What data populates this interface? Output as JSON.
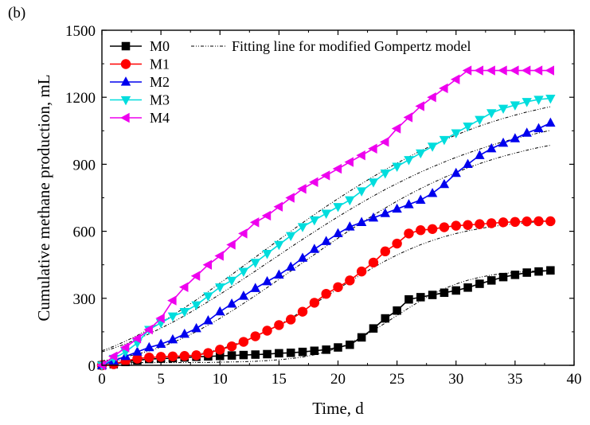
{
  "panel_label": "(b)",
  "chart_data": {
    "type": "line",
    "title": "",
    "xlabel": "Time, d",
    "ylabel": "Cumulative methane production, mL",
    "xlim": [
      0,
      40
    ],
    "ylim": [
      0,
      1500
    ],
    "xticks": [
      "0",
      "5",
      "10",
      "15",
      "20",
      "25",
      "30",
      "35",
      "40"
    ],
    "yticks": [
      "0",
      "300",
      "600",
      "900",
      "1200",
      "1500"
    ],
    "grid": false,
    "legend_placement": "top-left",
    "fit_legend_label": "Fitting line for modified Gompertz model",
    "x": [
      0,
      1,
      2,
      3,
      4,
      5,
      6,
      7,
      8,
      9,
      10,
      11,
      12,
      13,
      14,
      15,
      16,
      17,
      18,
      19,
      20,
      21,
      22,
      23,
      24,
      25,
      26,
      27,
      28,
      29,
      30,
      31,
      32,
      33,
      34,
      35,
      36,
      37,
      38
    ],
    "series": [
      {
        "name": "M0",
        "color": "#000000",
        "marker": "square",
        "values": [
          0,
          5,
          15,
          22,
          28,
          30,
          32,
          35,
          38,
          40,
          42,
          44,
          46,
          48,
          50,
          54,
          56,
          60,
          65,
          70,
          80,
          92,
          125,
          165,
          210,
          245,
          295,
          305,
          315,
          325,
          335,
          348,
          365,
          380,
          395,
          405,
          415,
          420,
          425
        ],
        "fit": [
          12,
          12,
          12,
          12,
          12,
          12,
          12,
          12,
          13,
          13,
          14,
          15,
          16,
          18,
          21,
          25,
          30,
          37,
          47,
          61,
          78,
          100,
          126,
          156,
          189,
          223,
          257,
          289,
          318,
          343,
          364,
          381,
          394,
          404,
          411,
          416,
          420,
          423,
          426
        ]
      },
      {
        "name": "M1",
        "color": "#ff0000",
        "marker": "circle",
        "values": [
          0,
          5,
          20,
          30,
          35,
          38,
          40,
          42,
          45,
          55,
          70,
          85,
          105,
          130,
          155,
          180,
          205,
          240,
          280,
          320,
          350,
          380,
          420,
          460,
          510,
          545,
          590,
          605,
          610,
          618,
          625,
          628,
          632,
          636,
          640,
          642,
          644,
          645,
          645
        ],
        "fit": [
          20,
          21,
          22,
          24,
          27,
          30,
          35,
          41,
          49,
          60,
          73,
          89,
          108,
          130,
          155,
          182,
          212,
          243,
          276,
          309,
          342,
          375,
          407,
          438,
          467,
          494,
          518,
          540,
          559,
          576,
          590,
          602,
          612,
          621,
          628,
          634,
          639,
          643,
          646
        ]
      },
      {
        "name": "M2",
        "color": "#0000ee",
        "marker": "triangle-up",
        "values": [
          0,
          20,
          40,
          60,
          80,
          95,
          115,
          140,
          165,
          200,
          240,
          275,
          310,
          345,
          375,
          405,
          440,
          480,
          520,
          555,
          590,
          620,
          640,
          660,
          680,
          700,
          720,
          740,
          770,
          810,
          860,
          900,
          940,
          970,
          995,
          1015,
          1040,
          1060,
          1085
        ],
        "fit": [
          20,
          28,
          38,
          50,
          64,
          82,
          102,
          125,
          151,
          180,
          210,
          243,
          277,
          312,
          348,
          385,
          422,
          459,
          496,
          533,
          569,
          605,
          639,
          672,
          704,
          735,
          764,
          791,
          817,
          841,
          863,
          884,
          903,
          920,
          936,
          950,
          963,
          975,
          985
        ]
      },
      {
        "name": "M3",
        "color": "#00dddd",
        "marker": "triangle-down",
        "values": [
          0,
          30,
          60,
          100,
          160,
          190,
          220,
          240,
          270,
          310,
          350,
          380,
          420,
          460,
          500,
          540,
          580,
          620,
          650,
          680,
          710,
          740,
          780,
          820,
          860,
          890,
          920,
          950,
          980,
          1010,
          1040,
          1070,
          1100,
          1130,
          1150,
          1165,
          1180,
          1190,
          1195
        ],
        "fit": [
          60,
          77,
          96,
          117,
          141,
          166,
          193,
          222,
          253,
          285,
          318,
          352,
          387,
          422,
          458,
          493,
          529,
          564,
          598,
          632,
          665,
          697,
          728,
          758,
          787,
          814,
          840,
          865,
          888,
          910,
          931,
          950,
          968,
          985,
          1001,
          1015,
          1028,
          1040,
          1052
        ]
      },
      {
        "name": "M4",
        "color": "#ee00ee",
        "marker": "triangle-left",
        "values": [
          0,
          40,
          80,
          120,
          160,
          210,
          290,
          350,
          400,
          450,
          490,
          540,
          590,
          640,
          670,
          710,
          750,
          790,
          820,
          850,
          880,
          910,
          940,
          970,
          1000,
          1060,
          1110,
          1160,
          1200,
          1240,
          1280,
          1320,
          1320,
          1320,
          1320,
          1320,
          1320,
          1320,
          1320
        ],
        "fit": [
          65,
          85,
          108,
          134,
          162,
          192,
          224,
          258,
          293,
          330,
          368,
          406,
          445,
          484,
          523,
          562,
          600,
          638,
          675,
          711,
          746,
          780,
          813,
          845,
          876,
          905,
          933,
          960,
          985,
          1009,
          1031,
          1052,
          1071,
          1089,
          1105,
          1120,
          1134,
          1146,
          1158
        ]
      }
    ]
  }
}
